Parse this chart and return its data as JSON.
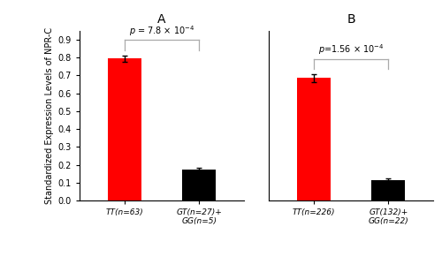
{
  "panel_A": {
    "label": "A",
    "categories": [
      "TT(n=63)",
      "GT(n=27)+\nGG(n=5)"
    ],
    "values": [
      0.795,
      0.175
    ],
    "errors": [
      0.018,
      0.01
    ],
    "colors": [
      "#ff0000",
      "#000000"
    ],
    "pvalue_text": "p = 7.8 × 10⁻⁴",
    "pvalue_text_plain": "p = 7.8 × 10",
    "pvalue_exp": "-4"
  },
  "panel_B": {
    "label": "B",
    "categories": [
      "TT(n=226)",
      "GT(132)+\nGG(n=22)"
    ],
    "values": [
      0.685,
      0.115
    ],
    "errors": [
      0.022,
      0.008
    ],
    "colors": [
      "#ff0000",
      "#000000"
    ],
    "pvalue_text": "p=1.56 × 10⁻⁴",
    "pvalue_text_plain": "p=1.56 × 10",
    "pvalue_exp": "-4"
  },
  "ylabel": "Standardized Expression Levels of NPR-C",
  "ylim": [
    0,
    0.95
  ],
  "yticks": [
    0.0,
    0.1,
    0.2,
    0.3,
    0.4,
    0.5,
    0.6,
    0.7,
    0.8,
    0.9
  ],
  "background_color": "#ffffff",
  "bracket_color": "#aaaaaa",
  "bar_width": 0.45
}
